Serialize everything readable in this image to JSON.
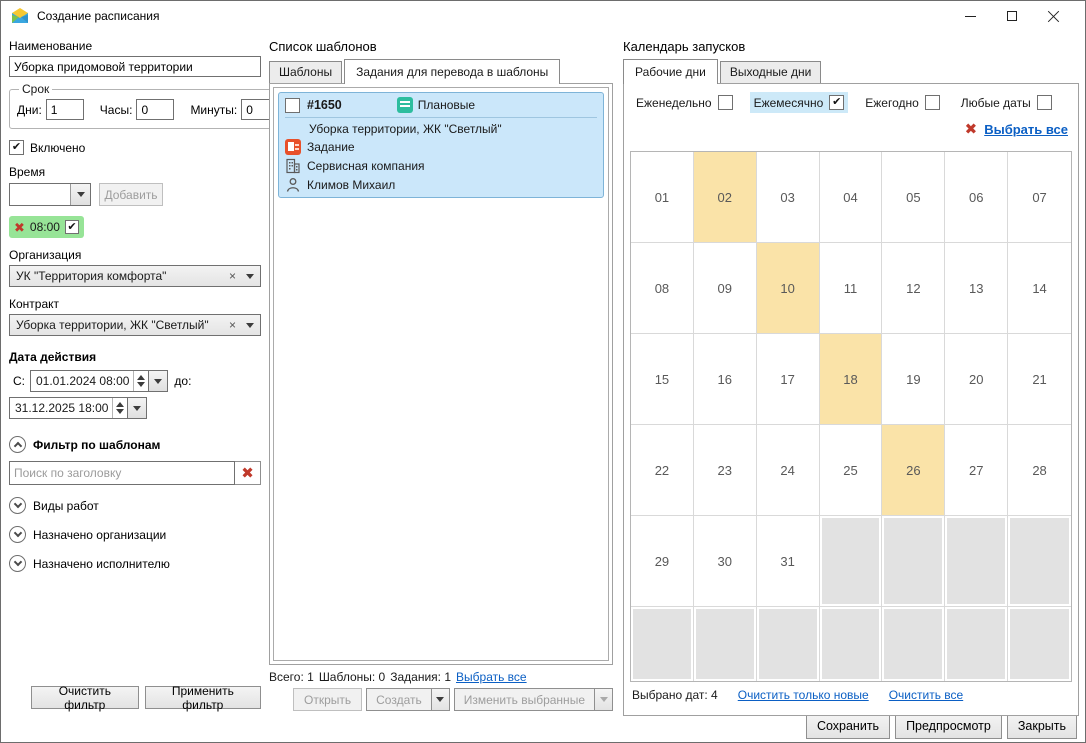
{
  "window": {
    "title": "Создание расписания",
    "icons": {
      "app": "mail-app-icon",
      "minimize": "minimize-icon",
      "maximize": "maximize-icon",
      "close": "close-icon"
    }
  },
  "left_panel": {
    "name_label": "Наименование",
    "name_value": "Уборка придомовой территории",
    "duration": {
      "legend": "Срок",
      "days_label": "Дни:",
      "days_value": "1",
      "hours_label": "Часы:",
      "hours_value": "0",
      "minutes_label": "Минуты:",
      "minutes_value": "0"
    },
    "enabled_label": "Включено",
    "enabled_checked": true,
    "time_label": "Время",
    "add_button": "Добавить",
    "time_chip": {
      "time": "08:00",
      "checked": true
    },
    "organization_label": "Организация",
    "organization_value": "УК \"Территория комфорта\"",
    "contract_label": "Контракт",
    "contract_value": "Уборка территории, ЖК \"Светлый\"",
    "date_range": {
      "title": "Дата действия",
      "from_label": "С:",
      "from_value": "01.01.2024 08:00",
      "to_label": "до:",
      "to_value": "31.12.2025 18:00"
    },
    "filter": {
      "header": "Фильтр по шаблонам",
      "search_placeholder": "Поиск по заголовку",
      "sections": [
        {
          "id": "work-types",
          "label": "Виды работ"
        },
        {
          "id": "assigned-organization",
          "label": "Назначено организации"
        },
        {
          "id": "assigned-executor",
          "label": "Назначено исполнителю"
        }
      ]
    },
    "clear_filter_button": "Очистить фильтр",
    "apply_filter_button": "Применить фильтр"
  },
  "templates_panel": {
    "title": "Список шаблонов",
    "tabs": [
      {
        "id": "templates",
        "label": "Шаблоны",
        "active": false
      },
      {
        "id": "tasks-to-templates",
        "label": "Задания для перевода в шаблоны",
        "active": true
      }
    ],
    "item": {
      "checked": false,
      "id": "#1650",
      "badge": "Плановые",
      "title": "Уборка территории, ЖК \"Светлый\"",
      "type": "Задание",
      "company": "Сервисная компания",
      "assignee": "Климов Михаил"
    },
    "summary": {
      "total": "Всего: 1",
      "templates": "Шаблоны: 0",
      "tasks": "Задания: 1",
      "select_all_link": "Выбрать все"
    },
    "buttons": {
      "open": "Открыть",
      "create": "Создать",
      "edit_selected": "Изменить выбранные"
    }
  },
  "calendar_panel": {
    "title": "Календарь запусков",
    "tabs": [
      {
        "id": "workdays",
        "label": "Рабочие дни",
        "active": true
      },
      {
        "id": "weekends",
        "label": "Выходные дни",
        "active": false
      }
    ],
    "frequency_options": [
      {
        "id": "weekly",
        "label": "Еженедельно",
        "checked": false
      },
      {
        "id": "monthly",
        "label": "Ежемесячно",
        "checked": true
      },
      {
        "id": "yearly",
        "label": "Ежегодно",
        "checked": false
      },
      {
        "id": "any-dates",
        "label": "Любые даты",
        "checked": false
      }
    ],
    "select_all_link": "Выбрать все",
    "days": [
      "01",
      "02",
      "03",
      "04",
      "05",
      "06",
      "07",
      "08",
      "09",
      "10",
      "11",
      "12",
      "13",
      "14",
      "15",
      "16",
      "17",
      "18",
      "19",
      "20",
      "21",
      "22",
      "23",
      "24",
      "25",
      "26",
      "27",
      "28",
      "29",
      "30",
      "31"
    ],
    "highlighted_days": [
      "02",
      "10",
      "18",
      "26"
    ],
    "total_cells": 42,
    "footer": {
      "selected_count_text": "Выбрано дат: 4",
      "clear_new_link": "Очистить только новые",
      "clear_all_link": "Очистить все"
    }
  },
  "footer_buttons": {
    "save": "Сохранить",
    "preview": "Предпросмотр",
    "close": "Закрыть"
  },
  "colors": {
    "selection_blue": "#cbe7fa",
    "day_highlight": "#fae3a8",
    "chip_green": "#97e497",
    "link_blue": "#0b5fc4",
    "icon_teal": "#2dbd9e",
    "icon_red": "#e8502a",
    "red_x": "#c0392b"
  }
}
